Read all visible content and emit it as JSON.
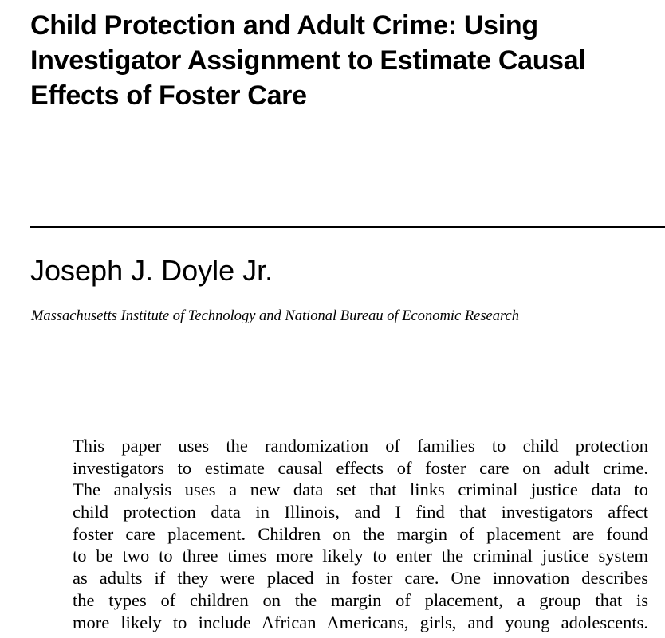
{
  "paper": {
    "title": "Child Protection and Adult Crime: Using\nInvestigator Assignment to Estimate Causal\nEffects of Foster Care",
    "author": "Joseph J. Doyle Jr.",
    "affiliation": "Massachusetts Institute of Technology and National Bureau of Economic Research",
    "abstract_lines": [
      "This paper uses the randomization of families to child protection",
      "investigators to estimate causal effects of foster care on adult crime.",
      "The analysis uses a new data set that links criminal justice data to",
      "child protection data in Illinois, and I find that investigators affect",
      "foster care placement. Children on the margin of placement are found",
      "to be two to three times more likely to enter the criminal justice system",
      "as adults if they were placed in foster care. One innovation describes",
      "the types of children on the margin of placement, a group that is",
      "more likely to include African Americans, girls, and young adolescents."
    ]
  }
}
